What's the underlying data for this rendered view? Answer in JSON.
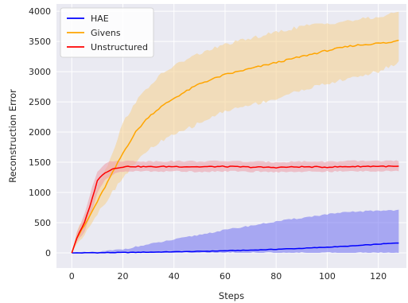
{
  "chart_data": {
    "type": "line",
    "title": "",
    "xlabel": "Steps",
    "ylabel": "Reconstruction Error",
    "xlim": [
      -6,
      131
    ],
    "ylim": [
      -250,
      4120
    ],
    "xticks": [
      0,
      20,
      40,
      60,
      80,
      100,
      120
    ],
    "yticks": [
      0,
      500,
      1000,
      1500,
      2000,
      2500,
      3000,
      3500,
      4000
    ],
    "grid": true,
    "legend_position": "top-left",
    "colors": {
      "background": "#eaeaf2",
      "grid": "#ffffff",
      "text": "#262626"
    },
    "series": [
      {
        "name": "HAE",
        "color": "#0000ff",
        "band_color": "#6f6ff2",
        "x": [
          0,
          10,
          20,
          30,
          40,
          50,
          60,
          70,
          80,
          90,
          100,
          110,
          120,
          128
        ],
        "mean": [
          0,
          3,
          7,
          12,
          18,
          25,
          35,
          45,
          60,
          75,
          95,
          115,
          145,
          165
        ],
        "lower": [
          0,
          0,
          0,
          0,
          0,
          0,
          0,
          0,
          0,
          0,
          0,
          0,
          0,
          0
        ],
        "upper": [
          0,
          15,
          60,
          140,
          220,
          300,
          380,
          450,
          520,
          580,
          640,
          680,
          700,
          710
        ]
      },
      {
        "name": "Givens",
        "color": "#ffa500",
        "band_color": "#f5cf8d",
        "x": [
          0,
          2,
          5,
          10,
          15,
          20,
          25,
          30,
          35,
          40,
          50,
          60,
          70,
          80,
          90,
          100,
          110,
          120,
          125,
          128
        ],
        "mean": [
          0,
          250,
          450,
          850,
          1250,
          1650,
          2000,
          2250,
          2420,
          2560,
          2800,
          2950,
          3050,
          3150,
          3250,
          3350,
          3430,
          3470,
          3480,
          3530
        ],
        "lower": [
          0,
          150,
          320,
          650,
          950,
          1250,
          1500,
          1700,
          1850,
          1950,
          2150,
          2350,
          2450,
          2550,
          2700,
          2800,
          2900,
          3000,
          3100,
          3150
        ],
        "upper": [
          0,
          350,
          600,
          1100,
          1550,
          2150,
          2500,
          2750,
          2950,
          3100,
          3300,
          3450,
          3550,
          3650,
          3750,
          3800,
          3850,
          3900,
          3950,
          4000
        ]
      },
      {
        "name": "Unstructured",
        "color": "#ff0000",
        "band_color": "#ec9aa6",
        "x": [
          0,
          2,
          5,
          8,
          10,
          13,
          16,
          19,
          22,
          25,
          30,
          40,
          50,
          60,
          70,
          80,
          90,
          100,
          110,
          120,
          128
        ],
        "mean": [
          0,
          250,
          500,
          900,
          1200,
          1330,
          1390,
          1420,
          1430,
          1430,
          1425,
          1430,
          1425,
          1430,
          1420,
          1415,
          1425,
          1420,
          1430,
          1435,
          1430
        ],
        "lower": [
          0,
          180,
          350,
          700,
          1000,
          1200,
          1300,
          1340,
          1350,
          1350,
          1350,
          1350,
          1345,
          1350,
          1345,
          1340,
          1345,
          1345,
          1350,
          1355,
          1350
        ],
        "upper": [
          0,
          330,
          650,
          1100,
          1350,
          1480,
          1520,
          1520,
          1520,
          1520,
          1515,
          1520,
          1515,
          1520,
          1510,
          1505,
          1515,
          1510,
          1520,
          1525,
          1520
        ]
      }
    ]
  }
}
